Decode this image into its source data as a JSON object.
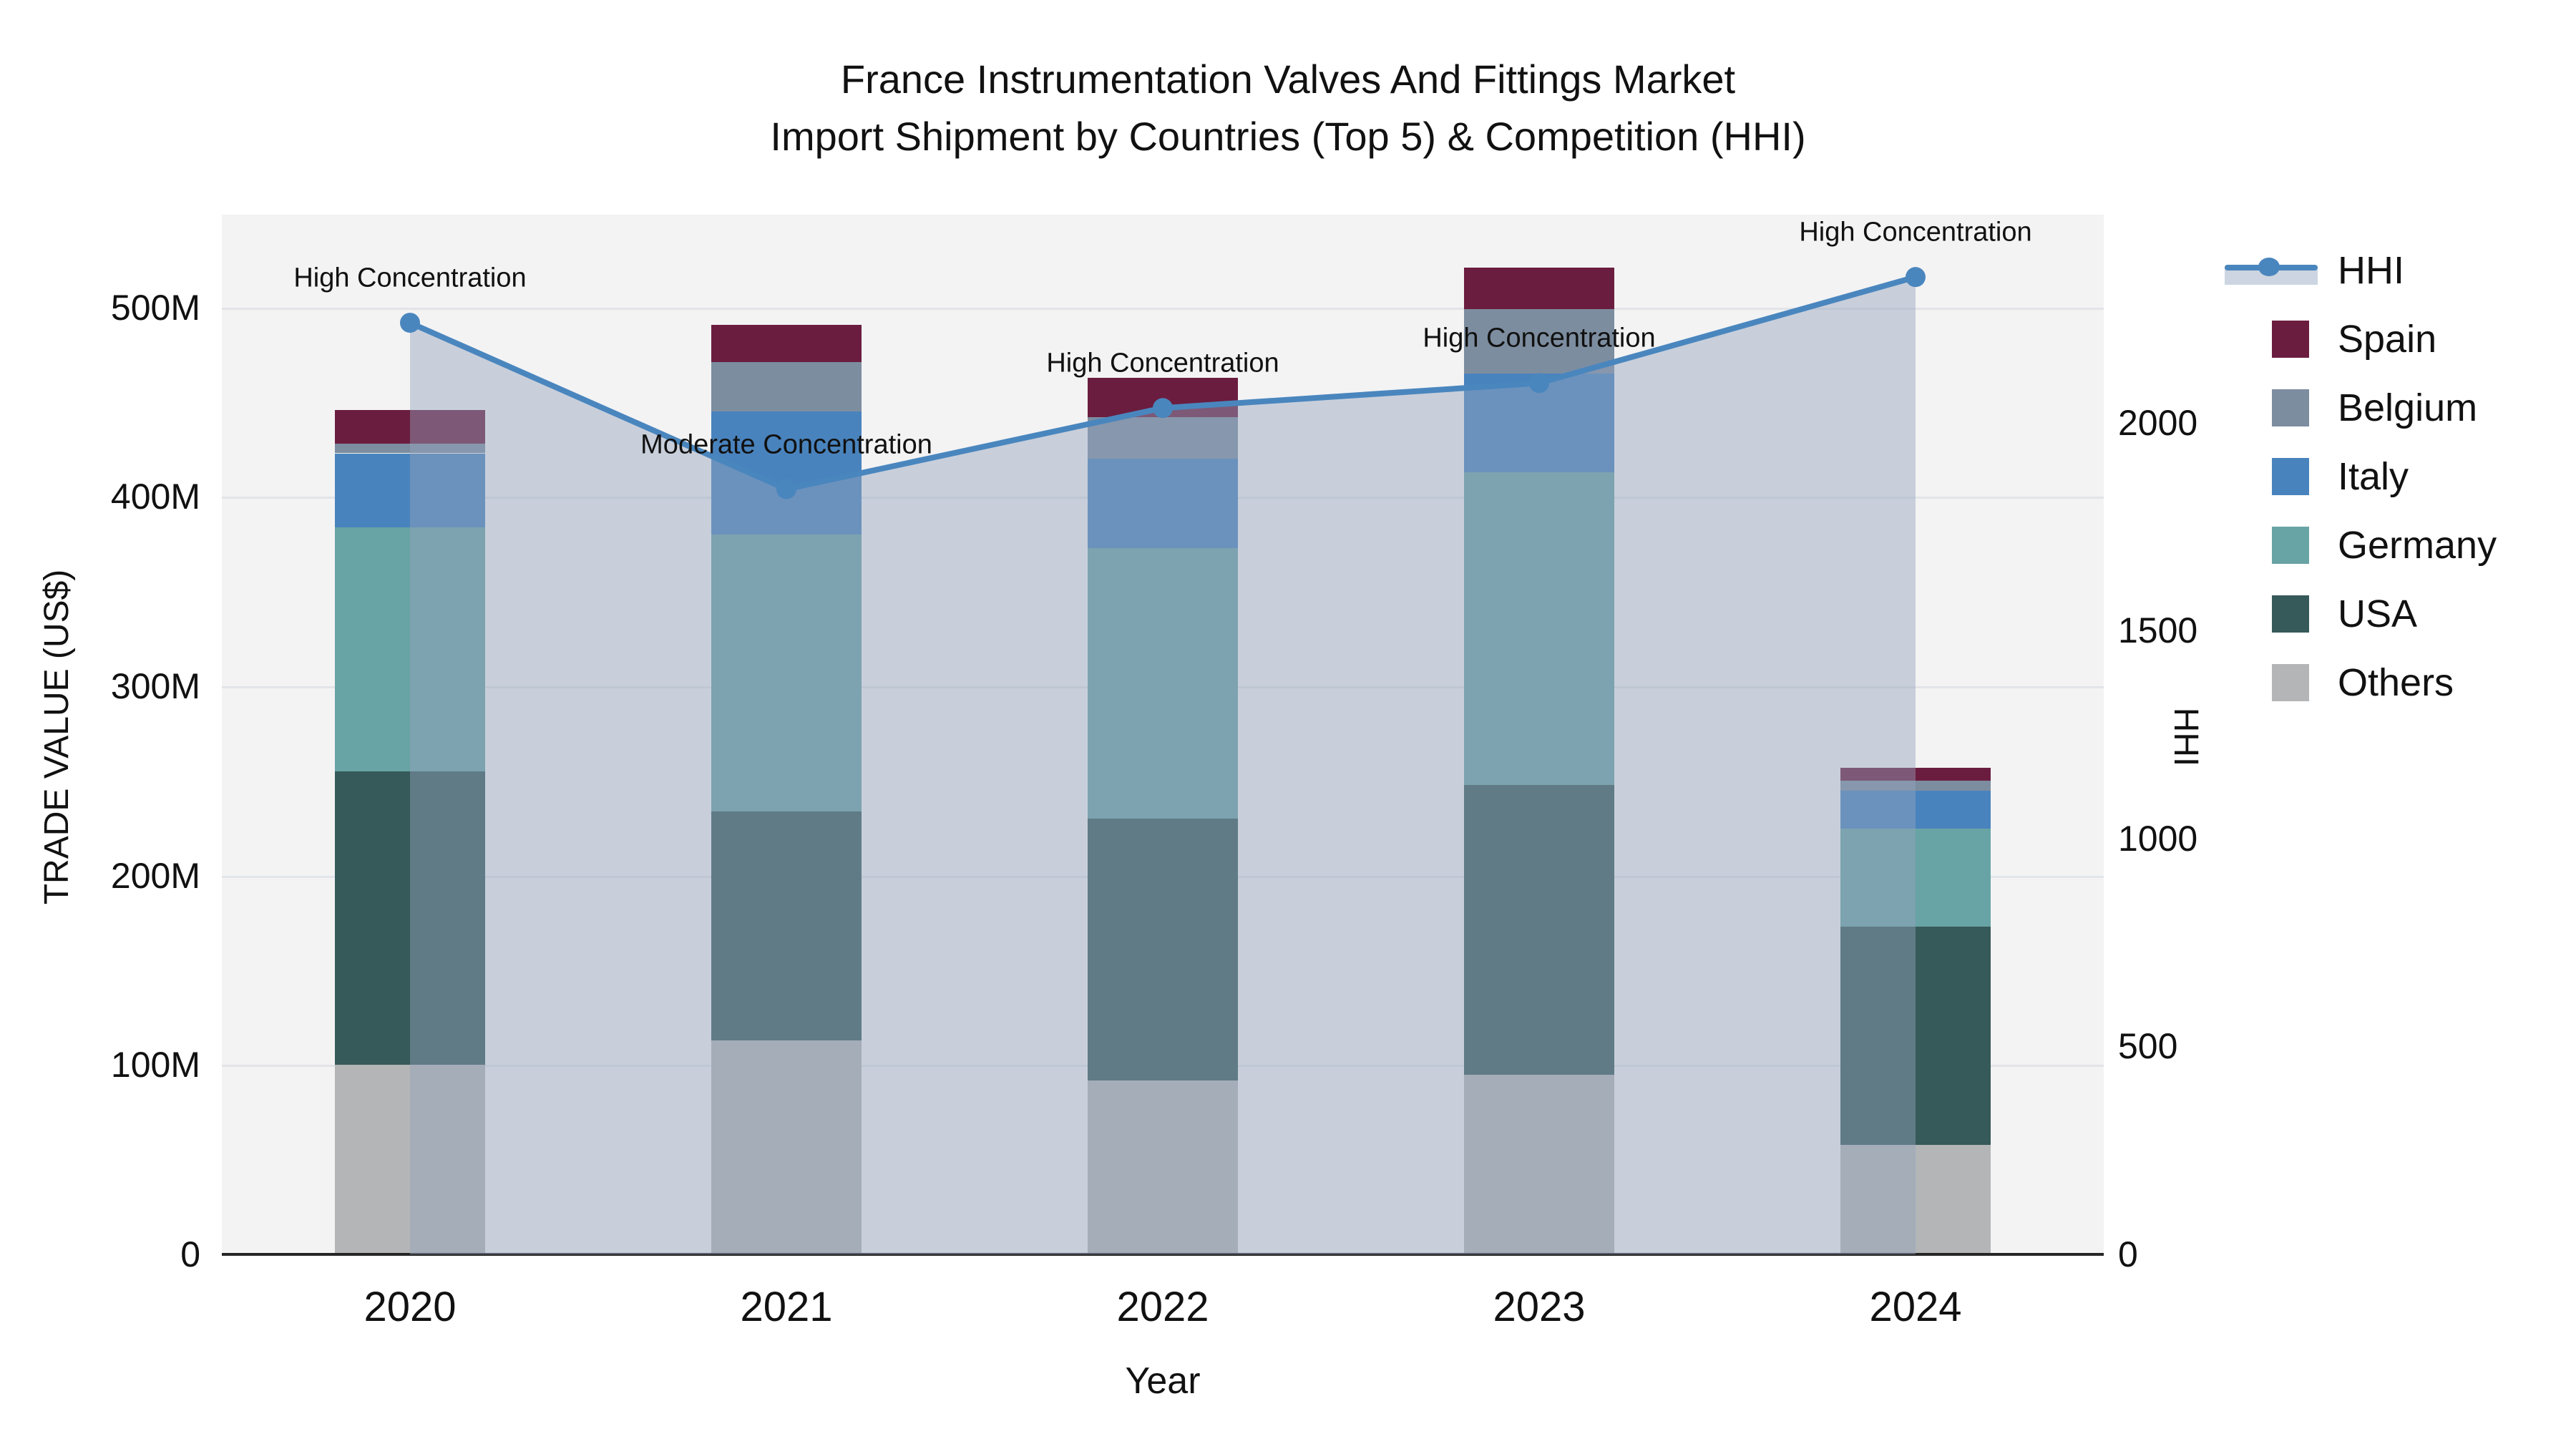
{
  "title": {
    "line1": "France Instrumentation Valves And Fittings Market",
    "line2": "Import Shipment by Countries (Top 5) & Competition (HHI)"
  },
  "axes": {
    "left": {
      "title": "TRADE VALUE (US$)",
      "tick_labels": [
        "0",
        "100M",
        "200M",
        "300M",
        "400M",
        "500M"
      ],
      "tick_values": [
        0,
        100,
        200,
        300,
        400,
        500
      ]
    },
    "right": {
      "title": "HHI",
      "tick_labels": [
        "0",
        "500",
        "1000",
        "1500",
        "2000"
      ],
      "tick_values": [
        0,
        500,
        1000,
        1500,
        2000
      ]
    },
    "x": {
      "title": "Year",
      "tick_labels": [
        "2020",
        "2021",
        "2022",
        "2023",
        "2024"
      ]
    }
  },
  "legend": [
    {
      "label": "HHI",
      "type": "line",
      "color": "#4a86be"
    },
    {
      "label": "Spain",
      "type": "square",
      "color": "#6b1d3f"
    },
    {
      "label": "Belgium",
      "type": "square",
      "color": "#7d8da0"
    },
    {
      "label": "Italy",
      "type": "square",
      "color": "#4983bd"
    },
    {
      "label": "Germany",
      "type": "square",
      "color": "#68a3a5"
    },
    {
      "label": "USA",
      "type": "square",
      "color": "#355a59"
    },
    {
      "label": "Others",
      "type": "square",
      "color": "#b3b5b6"
    }
  ],
  "colors": {
    "hhi_line": "#4a86be",
    "area_fill": "rgba(148,164,188,0.45)",
    "plot_bg": "#f3f3f4",
    "grid": "#e2e4e8"
  },
  "chart_data": {
    "type": "combo-stacked-bar-line",
    "categories": [
      "2020",
      "2021",
      "2022",
      "2023",
      "2024"
    ],
    "bar_unit": "Million US$",
    "stack_order_bottom_to_top": [
      "Others",
      "USA",
      "Germany",
      "Italy",
      "Belgium",
      "Spain"
    ],
    "series": [
      {
        "name": "Others",
        "color": "#b3b5b6",
        "values": [
          100,
          113,
          92,
          95,
          58
        ]
      },
      {
        "name": "USA",
        "color": "#355a59",
        "values": [
          155,
          121,
          138,
          153,
          115
        ]
      },
      {
        "name": "Germany",
        "color": "#68a3a5",
        "values": [
          129,
          146,
          143,
          165,
          52
        ]
      },
      {
        "name": "Italy",
        "color": "#4983bd",
        "values": [
          39,
          65,
          47,
          52,
          20
        ]
      },
      {
        "name": "Belgium",
        "color": "#7d8da0",
        "values": [
          5,
          26,
          22,
          34,
          5
        ]
      },
      {
        "name": "Spain",
        "color": "#6b1d3f",
        "values": [
          18,
          20,
          21,
          22,
          7
        ]
      }
    ],
    "bar_totals": [
      446,
      491,
      463,
      521,
      257
    ],
    "line_series": {
      "name": "HHI",
      "values": [
        2240,
        1840,
        2035,
        2095,
        2350
      ],
      "area": true
    },
    "annotations": [
      "High Concentration",
      "Moderate Concentration",
      "High Concentration",
      "High Concentration",
      "High Concentration"
    ],
    "ylim_left_M": [
      0,
      549
    ],
    "ylim_right_HHI": [
      0,
      2500
    ],
    "grid": true,
    "legend_position": "right"
  }
}
